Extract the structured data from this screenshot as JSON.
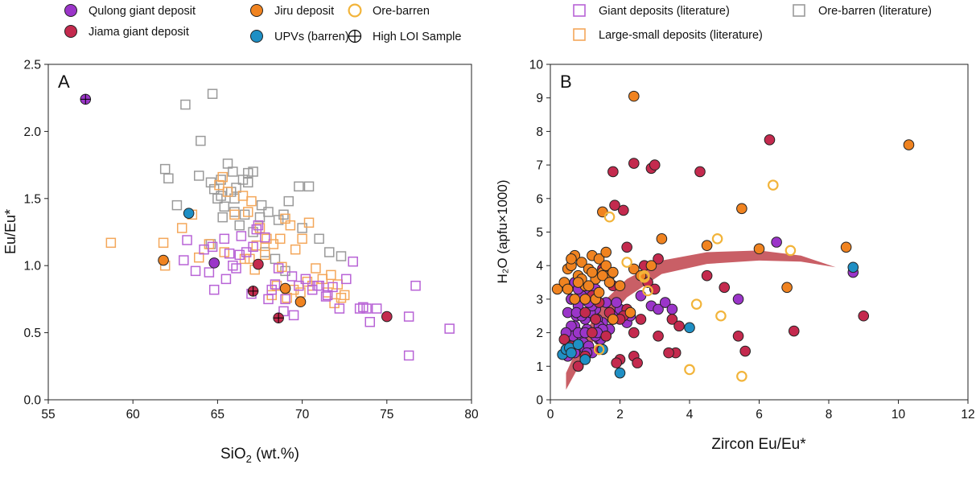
{
  "legend": {
    "items": [
      {
        "label": "Qulong giant deposit",
        "symbol": "circle-filled",
        "color": "#9b35c9"
      },
      {
        "label": "Jiama giant deposit",
        "symbol": "circle-filled",
        "color": "#c42a4e"
      },
      {
        "label": "Jiru deposit",
        "symbol": "circle-filled",
        "color": "#f08320"
      },
      {
        "label": "UPVs (barren)",
        "symbol": "circle-filled",
        "color": "#1f8fc4"
      },
      {
        "label": "Ore-barren",
        "symbol": "circle-open",
        "color": "#f2b43a"
      },
      {
        "label": "High LOI Sample",
        "symbol": "circle-cross",
        "color": "#000000"
      },
      {
        "label": "Giant deposits (literature)",
        "symbol": "square-open",
        "color": "#b863d6"
      },
      {
        "label": "Large-small deposits (literature)",
        "symbol": "square-open",
        "color": "#f4a75a"
      },
      {
        "label": "Ore-barren (literature)",
        "symbol": "square-open",
        "color": "#9a9a9a"
      }
    ]
  },
  "chart_data": [
    {
      "type": "scatter",
      "panel_label": "A",
      "xlabel": "SiO",
      "xlabel_sub": "2",
      "xlabel_suffix": " (wt.%)",
      "ylabel": "Eu/Eu*",
      "xlim": [
        55,
        80
      ],
      "ylim": [
        0,
        2.5
      ],
      "xticks": [
        "55",
        "60",
        "65",
        "70",
        "75",
        "80"
      ],
      "yticks": [
        "0.0",
        "0.5",
        "1.0",
        "1.5",
        "2.0",
        "2.5"
      ],
      "series": [
        {
          "name": "Ore-barren (literature)",
          "marker": "square-open",
          "color": "#9a9a9a",
          "x": [
            63.1,
            64.7,
            64.0,
            61.9,
            62.1,
            62.6,
            63.9,
            64.6,
            65.2,
            65.6,
            65.9,
            66.1,
            66.5,
            66.8,
            67.1,
            65.0,
            65.4,
            66.0,
            66.6,
            67.5,
            68.0,
            68.6,
            69.2,
            69.8,
            70.4,
            71.6,
            72.3,
            64.6,
            65.3,
            66.3,
            67.8,
            68.4,
            69.0,
            65.2,
            66.8,
            67.6,
            68.9,
            70.0,
            71.0,
            66.0,
            64.8,
            65.8,
            67.1
          ],
          "y": [
            2.2,
            2.28,
            1.93,
            1.72,
            1.65,
            1.45,
            1.67,
            1.62,
            1.52,
            1.76,
            1.7,
            1.58,
            1.64,
            1.69,
            1.7,
            1.5,
            1.44,
            1.4,
            1.38,
            1.36,
            1.4,
            1.34,
            1.48,
            1.59,
            1.59,
            1.1,
            1.07,
            1.16,
            1.36,
            1.3,
            1.1,
            1.05,
            0.96,
            1.64,
            1.62,
            1.45,
            1.38,
            1.28,
            1.2,
            1.5,
            1.57,
            1.55,
            1.25
          ]
        },
        {
          "name": "Large-small deposits (literature)",
          "marker": "square-open",
          "color": "#f4a75a",
          "x": [
            58.7,
            61.8,
            61.9,
            62.9,
            63.9,
            65.1,
            65.6,
            65.3,
            66.5,
            66.8,
            67.0,
            67.5,
            67.9,
            68.3,
            68.7,
            69.0,
            69.3,
            69.6,
            70.0,
            70.4,
            70.8,
            71.2,
            71.7,
            72.1,
            72.5,
            66.0,
            67.2,
            68.8,
            69.5,
            70.6,
            71.9,
            72.3,
            66.6,
            67.8,
            68.2,
            69.9,
            70.3,
            71.5,
            67.3,
            68.5,
            69.1,
            66.9,
            65.4,
            64.5,
            63.5
          ],
          "y": [
            1.17,
            1.17,
            1.0,
            1.28,
            1.06,
            1.6,
            1.55,
            1.66,
            1.52,
            1.4,
            1.48,
            1.28,
            1.2,
            1.16,
            1.2,
            1.35,
            1.3,
            1.12,
            1.2,
            1.32,
            0.98,
            0.9,
            0.93,
            0.86,
            0.78,
            1.38,
            0.97,
            0.99,
            0.82,
            0.85,
            0.72,
            0.76,
            1.05,
            1.08,
            0.78,
            0.8,
            0.88,
            0.8,
            1.15,
            0.85,
            0.76,
            1.05,
            1.1,
            1.16,
            1.38
          ]
        },
        {
          "name": "Giant deposits (literature)",
          "marker": "square-open",
          "color": "#b863d6",
          "x": [
            64.2,
            63.2,
            63.0,
            63.7,
            64.5,
            64.8,
            65.5,
            65.9,
            66.3,
            66.7,
            67.1,
            67.4,
            67.8,
            68.2,
            68.6,
            69.0,
            69.4,
            69.8,
            70.2,
            70.6,
            71.0,
            71.4,
            71.8,
            72.2,
            72.6,
            73.0,
            73.4,
            73.8,
            74.4,
            76.7,
            76.3,
            76.3,
            78.7,
            65.7,
            66.1,
            67.0,
            68.0,
            68.9,
            69.5,
            70.9,
            71.5,
            73.6,
            74.0,
            65.4,
            64.7,
            66.4,
            67.3,
            68.4
          ],
          "y": [
            1.12,
            1.19,
            1.04,
            0.96,
            0.95,
            0.82,
            0.9,
            1.0,
            1.08,
            1.1,
            1.14,
            1.3,
            1.21,
            0.82,
            0.98,
            0.75,
            0.92,
            0.85,
            0.9,
            0.82,
            0.85,
            0.77,
            0.84,
            0.68,
            0.9,
            1.03,
            0.68,
            0.68,
            0.68,
            0.85,
            0.62,
            0.33,
            0.53,
            1.09,
            0.98,
            0.79,
            0.75,
            0.66,
            0.63,
            0.85,
            0.78,
            0.69,
            0.58,
            1.2,
            1.14,
            1.22,
            1.27,
            0.86
          ]
        },
        {
          "name": "Qulong giant deposit",
          "marker": "circle",
          "color": "#9b35c9",
          "x": [
            57.2,
            64.8
          ],
          "y": [
            2.24,
            1.02
          ]
        },
        {
          "name": "Jiama giant deposit",
          "marker": "circle",
          "color": "#c42a4e",
          "x": [
            67.4,
            75.0,
            67.1,
            68.6
          ],
          "y": [
            1.01,
            0.62,
            0.81,
            0.61
          ]
        },
        {
          "name": "Jiru deposit",
          "marker": "circle",
          "color": "#f08320",
          "x": [
            61.8,
            69.0,
            69.9
          ],
          "y": [
            1.04,
            0.83,
            0.73
          ]
        },
        {
          "name": "UPVs (barren)",
          "marker": "circle",
          "color": "#1f8fc4",
          "x": [
            63.3
          ],
          "y": [
            1.39
          ]
        },
        {
          "name": "High LOI Sample",
          "marker": "cross",
          "color": "#000000",
          "x": [
            57.2,
            67.1,
            68.6
          ],
          "y": [
            2.24,
            0.81,
            0.61
          ]
        }
      ]
    },
    {
      "type": "scatter",
      "panel_label": "B",
      "xlabel": "Zircon Eu/Eu*",
      "ylabel": "H₂O (apfu×1000)",
      "xlim": [
        0,
        12
      ],
      "ylim": [
        0,
        10
      ],
      "xticks": [
        "0",
        "2",
        "4",
        "6",
        "8",
        "10",
        "12"
      ],
      "yticks": [
        "0",
        "1",
        "2",
        "3",
        "4",
        "5",
        "6",
        "7",
        "8",
        "9",
        "10"
      ],
      "trend_band": {
        "color": "#c0434b",
        "upper": [
          [
            0.45,
            0.8
          ],
          [
            0.9,
            1.8
          ],
          [
            1.5,
            2.9
          ],
          [
            2.2,
            3.6
          ],
          [
            3.2,
            4.15
          ],
          [
            4.5,
            4.4
          ],
          [
            6.0,
            4.45
          ],
          [
            7.2,
            4.3
          ],
          [
            8.2,
            3.95
          ]
        ],
        "lower": [
          [
            8.2,
            3.95
          ],
          [
            7.2,
            4.12
          ],
          [
            6.0,
            4.15
          ],
          [
            4.5,
            4.05
          ],
          [
            3.2,
            3.75
          ],
          [
            2.2,
            3.05
          ],
          [
            1.5,
            2.2
          ],
          [
            0.9,
            1.15
          ],
          [
            0.45,
            0.3
          ]
        ]
      },
      "series": [
        {
          "name": "Qulong giant deposit",
          "marker": "circle",
          "color": "#9b35c9",
          "x": [
            0.5,
            0.6,
            0.7,
            0.8,
            0.9,
            1.0,
            1.1,
            1.2,
            1.3,
            1.4,
            1.5,
            1.6,
            1.7,
            0.55,
            0.65,
            0.75,
            0.85,
            0.95,
            1.05,
            1.15,
            1.25,
            1.35,
            1.45,
            0.6,
            0.8,
            1.0,
            1.2,
            1.4,
            1.6,
            1.8,
            2.0,
            2.2,
            0.7,
            0.9,
            1.1,
            1.3,
            1.5,
            1.9,
            2.3,
            2.6,
            2.9,
            3.1,
            3.3,
            3.5,
            5.4,
            6.5,
            8.7,
            0.5,
            0.7,
            0.9,
            1.1,
            1.3,
            0.6,
            0.8,
            1.0,
            1.2,
            0.45,
            0.75,
            1.05,
            1.35
          ],
          "y": [
            2.6,
            3.0,
            2.2,
            2.8,
            1.9,
            2.4,
            3.2,
            2.0,
            2.7,
            1.8,
            2.3,
            2.9,
            2.1,
            1.6,
            1.9,
            2.5,
            3.4,
            1.7,
            2.1,
            2.6,
            3.0,
            2.4,
            1.8,
            2.2,
            2.0,
            1.5,
            2.8,
            2.2,
            1.9,
            2.5,
            2.7,
            2.3,
            3.5,
            3.1,
            2.9,
            3.3,
            2.1,
            2.9,
            2.5,
            3.1,
            2.8,
            2.7,
            2.9,
            2.7,
            3.0,
            4.7,
            3.8,
            1.3,
            1.4,
            2.5,
            1.6,
            1.9,
            3.0,
            3.3,
            2.0,
            1.4,
            2.0,
            2.6,
            1.4,
            2.0
          ]
        },
        {
          "name": "Jiama giant deposit",
          "marker": "circle",
          "color": "#c42a4e",
          "x": [
            0.4,
            0.6,
            0.8,
            1.0,
            1.2,
            1.4,
            1.6,
            1.8,
            2.0,
            2.2,
            2.4,
            2.6,
            2.8,
            3.0,
            1.2,
            1.5,
            1.8,
            2.1,
            1.3,
            1.7,
            2.4,
            3.1,
            3.6,
            1.8,
            2.4,
            2.9,
            3.0,
            4.3,
            6.3,
            1.85,
            2.1,
            2.2,
            1.9,
            2.5,
            3.4,
            4.5,
            5.0,
            5.4,
            5.6,
            7.0,
            9.0,
            3.1,
            2.0,
            1.4,
            1.0,
            0.8,
            2.7,
            3.5,
            3.7
          ],
          "y": [
            1.8,
            1.6,
            1.0,
            1.3,
            2.0,
            1.5,
            1.9,
            2.4,
            1.2,
            2.7,
            2.0,
            2.4,
            3.5,
            3.3,
            3.1,
            3.9,
            3.4,
            2.5,
            2.4,
            2.6,
            1.3,
            1.9,
            1.4,
            6.8,
            7.05,
            6.9,
            7.0,
            6.8,
            7.75,
            5.8,
            5.65,
            4.55,
            1.1,
            1.1,
            1.4,
            3.7,
            3.35,
            1.9,
            1.45,
            2.05,
            2.5,
            4.2,
            2.4,
            2.9,
            2.6,
            1.0,
            4.0,
            2.4,
            2.2
          ]
        },
        {
          "name": "Jiru deposit",
          "marker": "circle",
          "color": "#f08320",
          "x": [
            0.2,
            0.4,
            0.5,
            0.6,
            0.7,
            0.8,
            0.9,
            1.0,
            1.1,
            1.2,
            1.3,
            1.4,
            1.5,
            1.6,
            1.7,
            0.5,
            0.7,
            0.9,
            1.1,
            1.3,
            1.5,
            1.7,
            0.6,
            0.8,
            1.0,
            1.2,
            1.4,
            1.6,
            1.8,
            2.0,
            2.4,
            2.6,
            2.9,
            3.2,
            1.5,
            2.4,
            4.5,
            5.5,
            6.0,
            6.8,
            8.5,
            10.3,
            2.3,
            1.8
          ],
          "y": [
            3.3,
            3.5,
            3.9,
            4.0,
            4.3,
            3.7,
            4.1,
            3.4,
            3.9,
            4.3,
            3.6,
            4.2,
            3.8,
            4.0,
            3.7,
            3.3,
            3.0,
            3.6,
            3.4,
            3.0,
            3.7,
            3.5,
            4.2,
            3.5,
            3.0,
            3.8,
            3.2,
            4.4,
            3.8,
            3.4,
            3.9,
            3.7,
            4.0,
            4.8,
            5.6,
            9.05,
            4.6,
            5.7,
            4.5,
            3.35,
            4.55,
            7.6,
            2.6,
            2.4
          ]
        },
        {
          "name": "UPVs (barren)",
          "marker": "circle",
          "color": "#1f8fc4",
          "x": [
            0.35,
            0.45,
            0.55,
            0.8,
            0.6,
            1.0,
            1.5,
            2.0,
            4.0,
            8.7
          ],
          "y": [
            1.35,
            1.5,
            1.55,
            1.65,
            1.4,
            1.2,
            1.5,
            0.8,
            2.15,
            3.95
          ]
        },
        {
          "name": "Ore-barren",
          "marker": "circle-open",
          "color": "#f2b43a",
          "x": [
            1.7,
            2.2,
            2.7,
            2.8,
            4.2,
            4.8,
            4.9,
            4.0,
            5.5,
            6.4,
            6.9,
            2.7,
            1.4
          ],
          "y": [
            5.45,
            4.1,
            3.65,
            3.25,
            2.85,
            4.8,
            2.5,
            0.9,
            0.7,
            6.4,
            4.45,
            3.7,
            1.5
          ]
        }
      ]
    }
  ]
}
